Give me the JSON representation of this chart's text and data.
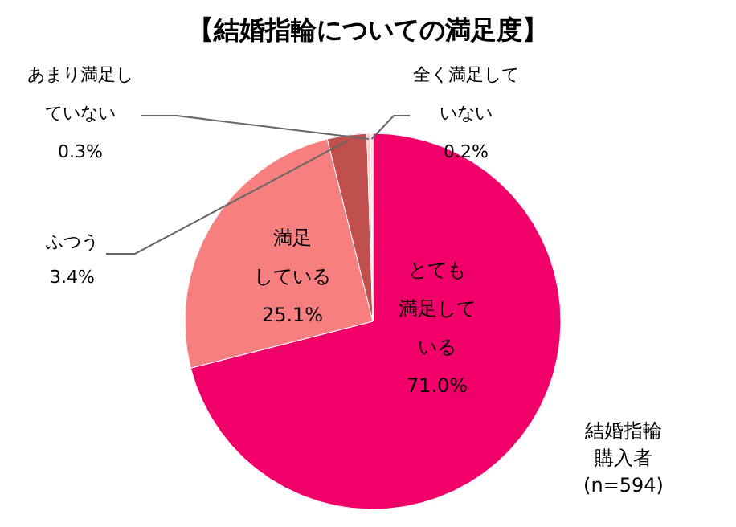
{
  "chart_data": {
    "type": "pie",
    "title": "【結婚指輪についての満足度】",
    "categories": [
      "とても満足している",
      "満足している",
      "ふつう",
      "あまり満足していない",
      "全く満足していない"
    ],
    "values": [
      71.0,
      25.1,
      3.4,
      0.3,
      0.2
    ],
    "value_labels": [
      "71.0%",
      "25.1%",
      "3.4%",
      "0.3%",
      "0.2%"
    ],
    "colors": [
      "#f2006a",
      "#f77f7f",
      "#c0504d",
      "#f9c9c9",
      "#f3dede"
    ],
    "annotations": [
      "結婚指輪購入者",
      "(n=594)"
    ]
  }
}
